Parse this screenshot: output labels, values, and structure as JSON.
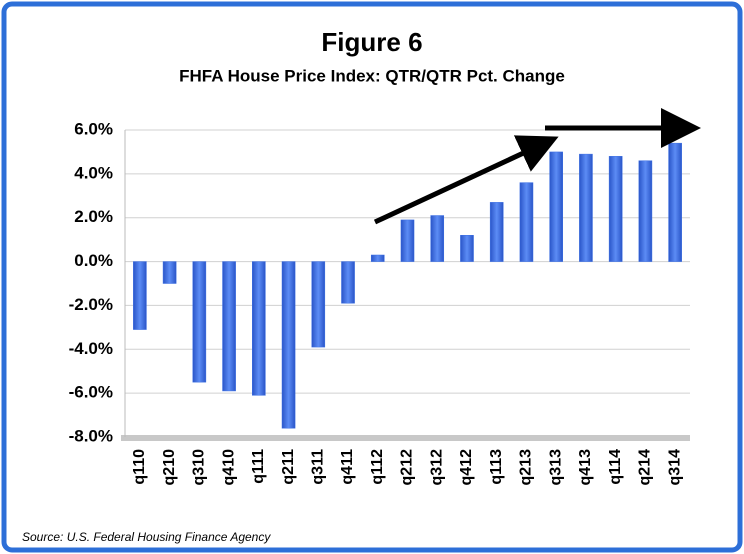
{
  "chart_data": {
    "type": "bar",
    "title": "Figure 6",
    "subtitle": "FHFA House Price Index: QTR/QTR Pct. Change",
    "source": "Source: U.S. Federal Housing Finance Agency",
    "categories": [
      "q110",
      "q210",
      "q310",
      "q410",
      "q111",
      "q211",
      "q311",
      "q411",
      "q112",
      "q212",
      "q312",
      "q412",
      "q113",
      "q213",
      "q313",
      "q413",
      "q114",
      "q214",
      "q314"
    ],
    "values": [
      -3.1,
      -1.0,
      -5.5,
      -5.9,
      -6.1,
      -7.6,
      -3.9,
      -1.9,
      0.3,
      1.9,
      2.1,
      1.2,
      2.7,
      3.6,
      5.0,
      4.9,
      4.8,
      4.6,
      5.4
    ],
    "color": "#3b6fe3",
    "ylim": [
      -8,
      6
    ],
    "yticks": [
      {
        "value": -8,
        "label": "-8.0%"
      },
      {
        "value": -6,
        "label": "-6.0%"
      },
      {
        "value": -4,
        "label": "-4.0%"
      },
      {
        "value": -2,
        "label": "-2.0%"
      },
      {
        "value": 0,
        "label": "0.0%"
      },
      {
        "value": 2,
        "label": "2.0%"
      },
      {
        "value": 4,
        "label": "4.0%"
      },
      {
        "value": 6,
        "label": "6.0%"
      }
    ],
    "grid": true
  }
}
